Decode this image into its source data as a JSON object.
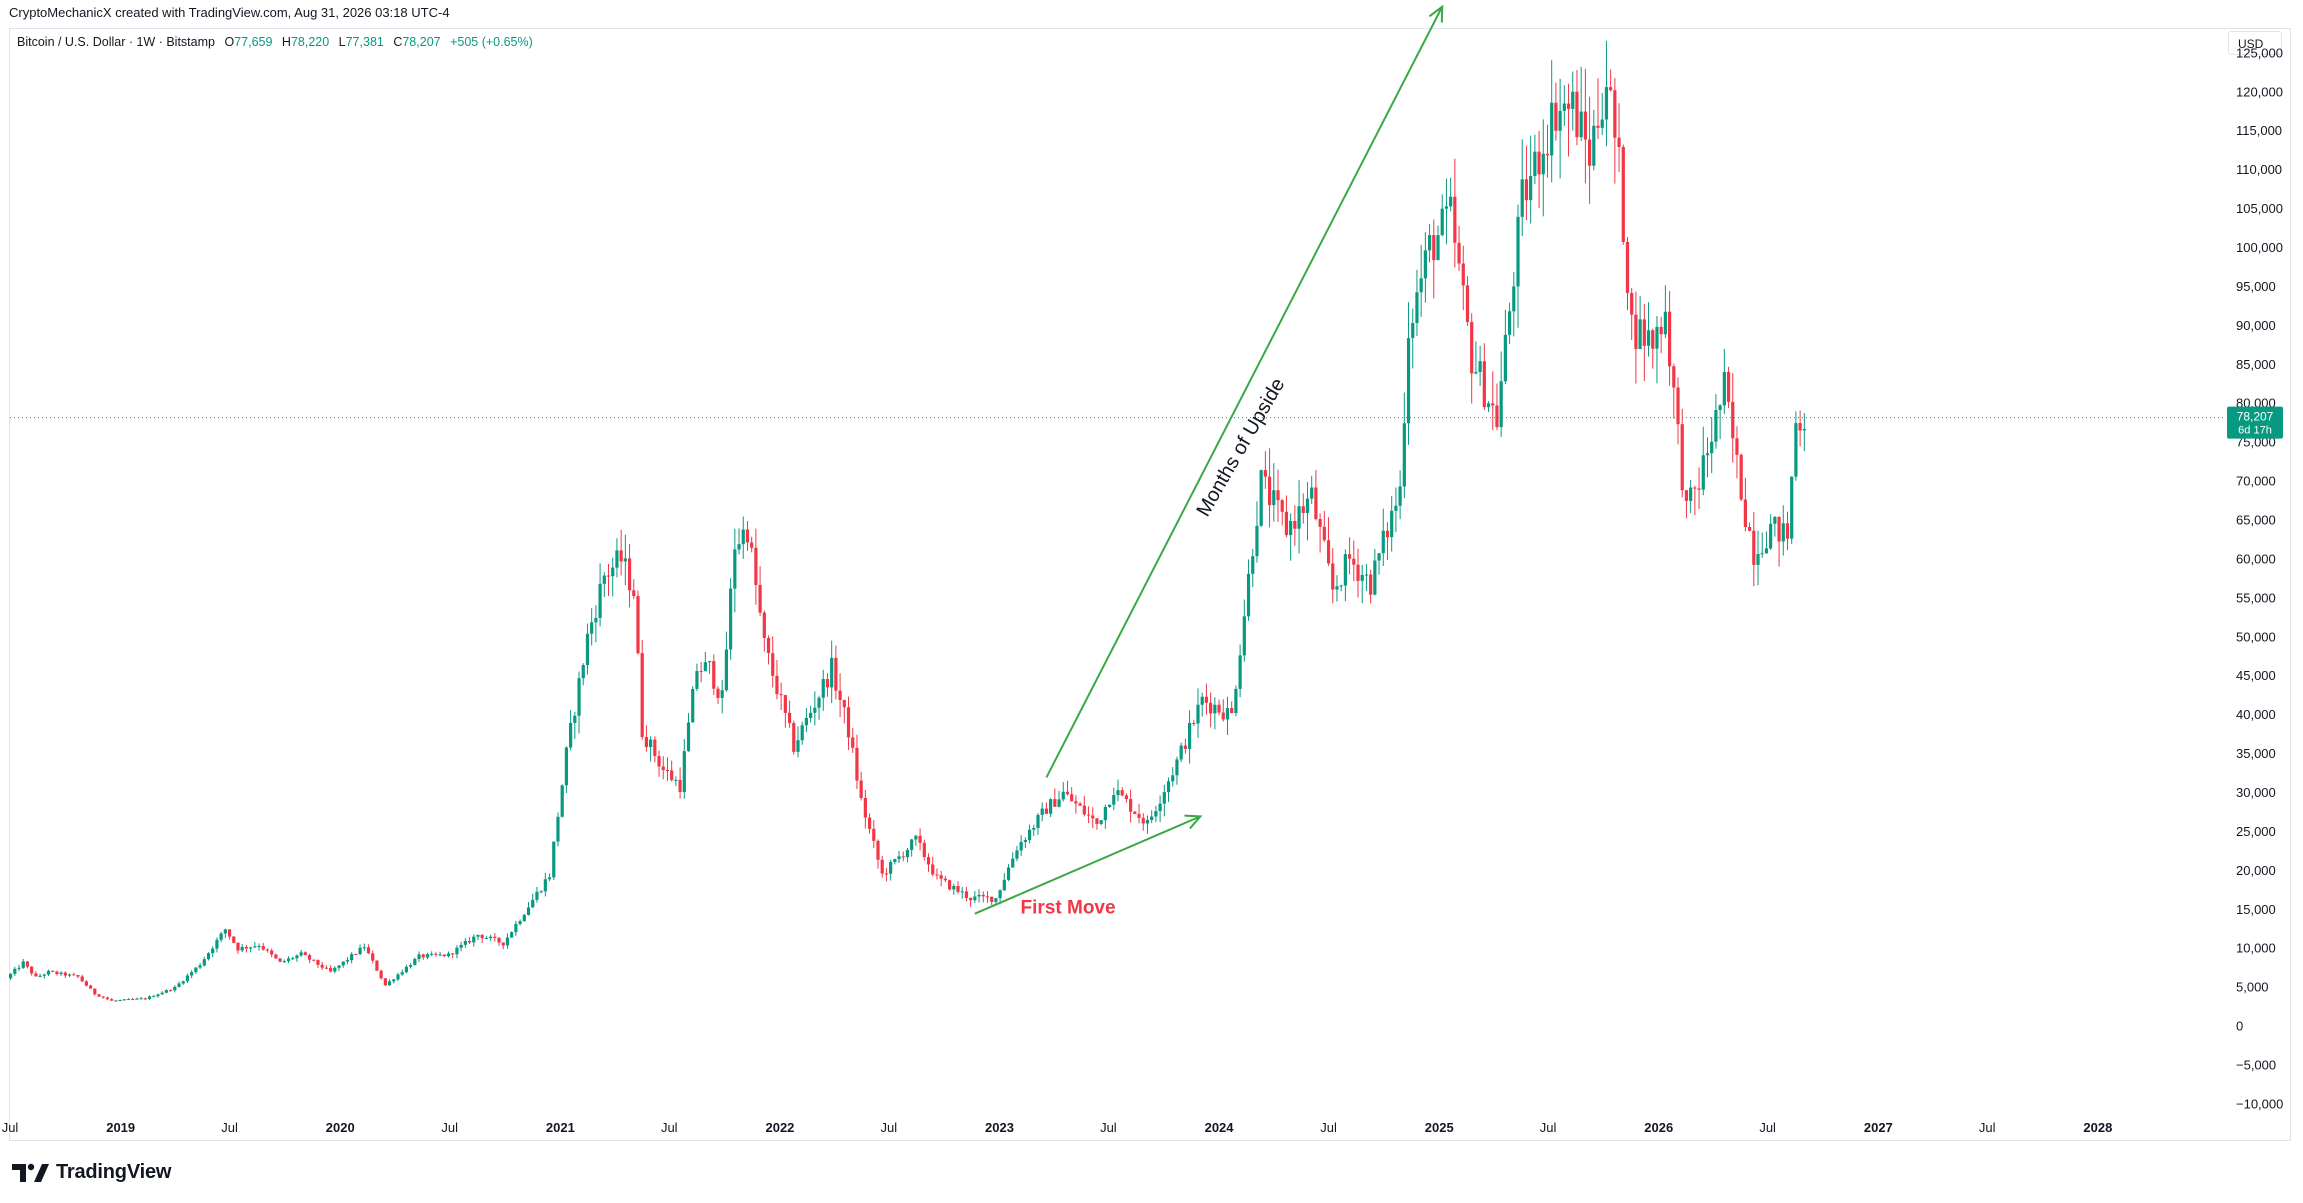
{
  "header": {
    "credit": "CryptoMechanicX created with TradingView.com, Aug 31, 2026 03:18 UTC-4"
  },
  "legend": {
    "symbol": "Bitcoin / U.S. Dollar · 1W · Bitstamp",
    "o_label": "O",
    "o_value": "77,659",
    "h_label": "H",
    "h_value": "78,220",
    "l_label": "L",
    "l_value": "77,381",
    "c_label": "C",
    "c_value": "78,207",
    "change": "+505 (+0.65%)"
  },
  "currency_button": "USD",
  "price_tag": {
    "price": "78,207",
    "countdown": "6d 17h",
    "color": "#089981"
  },
  "footer": {
    "brand": "TradingView"
  },
  "colors": {
    "up": "#089981",
    "down": "#f23645",
    "annotation": "#3aa845",
    "label": "#f23645"
  },
  "chart_data": {
    "type": "candlestick",
    "title": "Bitcoin / U.S. Dollar · 1W · Bitstamp",
    "timeframe": "1W",
    "current_price": 78207,
    "ylim": [
      -12000,
      128000
    ],
    "y_ticks": [
      -10000,
      -5000,
      0,
      5000,
      10000,
      15000,
      20000,
      25000,
      30000,
      35000,
      40000,
      45000,
      50000,
      55000,
      60000,
      65000,
      70000,
      75000,
      80000,
      85000,
      90000,
      95000,
      100000,
      105000,
      110000,
      115000,
      120000,
      125000
    ],
    "y_tick_labels": [
      "−10,000",
      "−5,000",
      "0",
      "5,000",
      "10,000",
      "15,000",
      "20,000",
      "25,000",
      "30,000",
      "35,000",
      "40,000",
      "45,000",
      "50,000",
      "55,000",
      "60,000",
      "65,000",
      "70,000",
      "75,000",
      "80,000",
      "85,000",
      "90,000",
      "95,000",
      "100,000",
      "105,000",
      "110,000",
      "115,000",
      "120,000",
      "125,000"
    ],
    "xlim": [
      "2018-07-01",
      "2028-08-01"
    ],
    "x_ticks": [
      {
        "date": "2018-07-01",
        "label": "Jul",
        "bold": false
      },
      {
        "date": "2019-01-01",
        "label": "2019",
        "bold": true
      },
      {
        "date": "2019-07-01",
        "label": "Jul",
        "bold": false
      },
      {
        "date": "2020-01-01",
        "label": "2020",
        "bold": true
      },
      {
        "date": "2020-07-01",
        "label": "Jul",
        "bold": false
      },
      {
        "date": "2021-01-01",
        "label": "2021",
        "bold": true
      },
      {
        "date": "2021-07-01",
        "label": "Jul",
        "bold": false
      },
      {
        "date": "2022-01-01",
        "label": "2022",
        "bold": true
      },
      {
        "date": "2022-07-01",
        "label": "Jul",
        "bold": false
      },
      {
        "date": "2023-01-01",
        "label": "2023",
        "bold": true
      },
      {
        "date": "2023-07-01",
        "label": "Jul",
        "bold": false
      },
      {
        "date": "2024-01-01",
        "label": "2024",
        "bold": true
      },
      {
        "date": "2024-07-01",
        "label": "Jul",
        "bold": false
      },
      {
        "date": "2025-01-01",
        "label": "2025",
        "bold": true
      },
      {
        "date": "2025-07-01",
        "label": "Jul",
        "bold": false
      },
      {
        "date": "2026-01-01",
        "label": "2026",
        "bold": true
      },
      {
        "date": "2026-07-01",
        "label": "Jul",
        "bold": false
      },
      {
        "date": "2027-01-01",
        "label": "2027",
        "bold": true
      },
      {
        "date": "2027-07-01",
        "label": "Jul",
        "bold": false
      },
      {
        "date": "2028-01-01",
        "label": "2028",
        "bold": true
      }
    ],
    "price_path": [
      [
        "2018-06-25",
        6200
      ],
      [
        "2018-07-23",
        8200
      ],
      [
        "2018-08-13",
        6300
      ],
      [
        "2018-09-03",
        7000
      ],
      [
        "2018-10-22",
        6400
      ],
      [
        "2018-11-19",
        4200
      ],
      [
        "2018-12-17",
        3300
      ],
      [
        "2019-02-11",
        3600
      ],
      [
        "2019-04-01",
        5000
      ],
      [
        "2019-05-13",
        8000
      ],
      [
        "2019-06-24",
        12500
      ],
      [
        "2019-07-15",
        10000
      ],
      [
        "2019-08-19",
        10500
      ],
      [
        "2019-09-23",
        8200
      ],
      [
        "2019-10-28",
        9300
      ],
      [
        "2019-12-16",
        7000
      ],
      [
        "2020-02-10",
        10300
      ],
      [
        "2020-03-16",
        5300
      ],
      [
        "2020-05-11",
        9000
      ],
      [
        "2020-06-29",
        9200
      ],
      [
        "2020-08-17",
        11800
      ],
      [
        "2020-09-28",
        10700
      ],
      [
        "2020-11-09",
        15500
      ],
      [
        "2020-12-14",
        19500
      ],
      [
        "2021-01-11",
        35000
      ],
      [
        "2021-02-15",
        50000
      ],
      [
        "2021-03-15",
        58000
      ],
      [
        "2021-04-12",
        60000
      ],
      [
        "2021-05-03",
        56000
      ],
      [
        "2021-05-17",
        38000
      ],
      [
        "2021-06-21",
        33000
      ],
      [
        "2021-07-19",
        31000
      ],
      [
        "2021-08-16",
        46000
      ],
      [
        "2021-09-06",
        46000
      ],
      [
        "2021-09-27",
        42000
      ],
      [
        "2021-10-18",
        62000
      ],
      [
        "2021-11-08",
        64000
      ],
      [
        "2021-12-06",
        49000
      ],
      [
        "2022-01-24",
        36000
      ],
      [
        "2022-03-28",
        46000
      ],
      [
        "2022-04-25",
        38000
      ],
      [
        "2022-05-16",
        29000
      ],
      [
        "2022-06-20",
        19500
      ],
      [
        "2022-08-15",
        24000
      ],
      [
        "2022-09-19",
        19000
      ],
      [
        "2022-11-14",
        16500
      ],
      [
        "2022-12-26",
        16500
      ],
      [
        "2023-01-30",
        23000
      ],
      [
        "2023-03-20",
        28000
      ],
      [
        "2023-04-17",
        30000
      ],
      [
        "2023-06-12",
        26000
      ],
      [
        "2023-07-10",
        30500
      ],
      [
        "2023-09-04",
        26000
      ],
      [
        "2023-10-23",
        34000
      ],
      [
        "2023-12-04",
        42000
      ],
      [
        "2024-01-22",
        40000
      ],
      [
        "2024-02-26",
        62000
      ],
      [
        "2024-03-11",
        70000
      ],
      [
        "2024-04-22",
        64000
      ],
      [
        "2024-06-03",
        68000
      ],
      [
        "2024-07-08",
        56000
      ],
      [
        "2024-08-05",
        60000
      ],
      [
        "2024-09-09",
        57000
      ],
      [
        "2024-10-28",
        69000
      ],
      [
        "2024-11-11",
        90000
      ],
      [
        "2024-12-16",
        100000
      ],
      [
        "2025-01-20",
        104000
      ],
      [
        "2025-02-24",
        86000
      ],
      [
        "2025-04-07",
        78000
      ],
      [
        "2025-05-19",
        106000
      ],
      [
        "2025-07-14",
        118000
      ],
      [
        "2025-08-11",
        118000
      ],
      [
        "2025-09-08",
        112000
      ],
      [
        "2025-10-06",
        122000
      ],
      [
        "2025-10-27",
        110000
      ],
      [
        "2025-11-17",
        90000
      ],
      [
        "2025-12-22",
        88000
      ],
      [
        "2026-01-12",
        92000
      ],
      [
        "2026-02-02",
        76000
      ],
      [
        "2026-02-16",
        66000
      ],
      [
        "2026-03-09",
        70000
      ],
      [
        "2026-04-06",
        78000
      ],
      [
        "2026-04-20",
        82000
      ],
      [
        "2026-05-11",
        72000
      ],
      [
        "2026-05-25",
        66000
      ],
      [
        "2026-06-08",
        61000
      ],
      [
        "2026-07-06",
        64000
      ],
      [
        "2026-08-03",
        63000
      ],
      [
        "2026-08-17",
        77659
      ],
      [
        "2026-08-31",
        78207
      ]
    ],
    "annotations": [
      {
        "text": "First Move",
        "color": "#f23645",
        "type": "label",
        "x": "2023-04-25",
        "y": 14500
      },
      {
        "text": "Months of Upside",
        "color": "#131722",
        "type": "rotated-label",
        "x": "2024-02-15",
        "y": 74000
      },
      {
        "type": "arrow",
        "from": [
          "2022-11-21",
          14500
        ],
        "to": [
          "2023-12-01",
          27000
        ],
        "color": "#3aa845"
      },
      {
        "type": "arrow",
        "from": [
          "2023-03-20",
          32000
        ],
        "to": [
          "2025-01-06",
          131000
        ],
        "color": "#3aa845"
      }
    ]
  }
}
